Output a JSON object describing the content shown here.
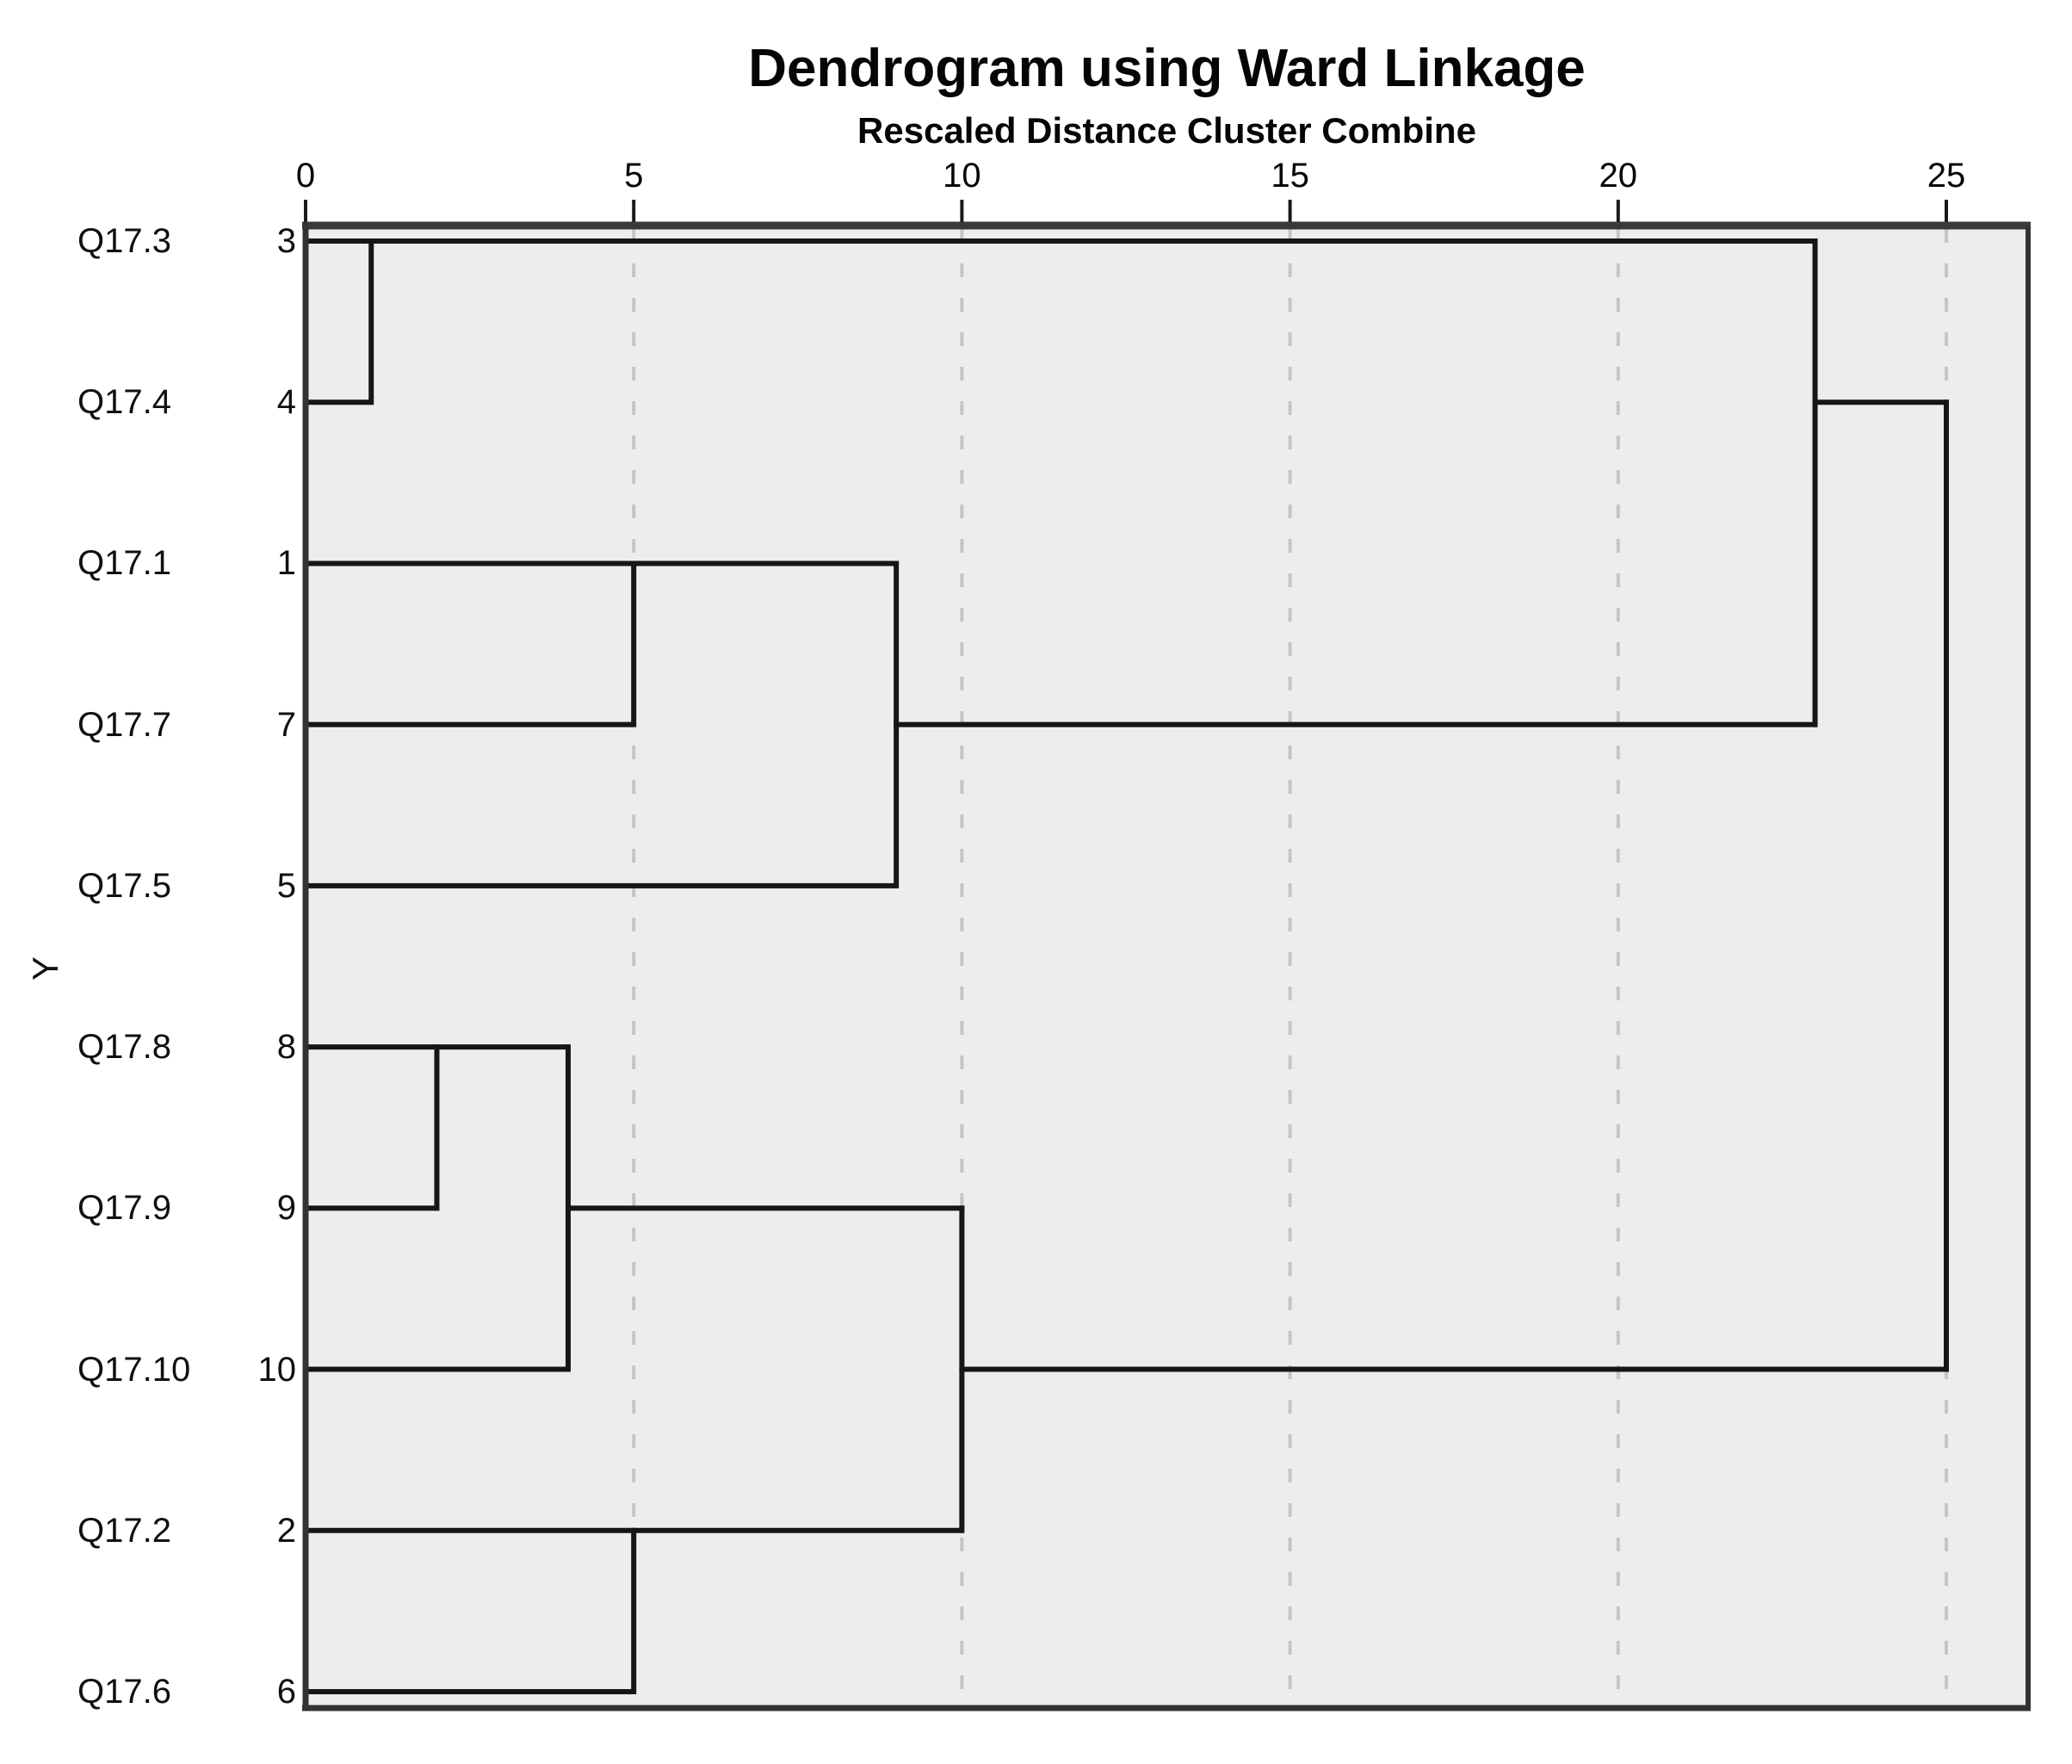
{
  "chart_data": {
    "type": "dendrogram",
    "title": "Dendrogram using Ward Linkage",
    "subtitle": "Rescaled Distance Cluster Combine",
    "orientation": "horizontal",
    "y_axis_label": "Y",
    "x_axis": {
      "ticks": [
        0,
        5,
        10,
        15,
        20,
        25
      ],
      "range": [
        0,
        26.2
      ],
      "gridlines_at": [
        5,
        10,
        15,
        20,
        25
      ],
      "gridline_style": "dashed"
    },
    "leaves": [
      {
        "variable": "Q17.3",
        "case": 3,
        "leaf_line_to": 23
      },
      {
        "variable": "Q17.4",
        "case": 4,
        "leaf_line_to": 1
      },
      {
        "variable": "Q17.1",
        "case": 1,
        "leaf_line_to": 9
      },
      {
        "variable": "Q17.7",
        "case": 7,
        "leaf_line_to": 5
      },
      {
        "variable": "Q17.5",
        "case": 5,
        "leaf_line_to": 9
      },
      {
        "variable": "Q17.8",
        "case": 8,
        "leaf_line_to": 4
      },
      {
        "variable": "Q17.9",
        "case": 9,
        "leaf_line_to": 2
      },
      {
        "variable": "Q17.10",
        "case": 10,
        "leaf_line_to": 4
      },
      {
        "variable": "Q17.2",
        "case": 2,
        "leaf_line_to": 10
      },
      {
        "variable": "Q17.6",
        "case": 6,
        "leaf_line_to": 5
      }
    ],
    "merges": [
      {
        "distance": 1,
        "top_case": 3,
        "bottom_case": 4,
        "cluster": [
          "Q17.3",
          "Q17.4"
        ],
        "continues_at_case": null,
        "continues_to": null
      },
      {
        "distance": 2,
        "top_case": 8,
        "bottom_case": 9,
        "cluster": [
          "Q17.8",
          "Q17.9"
        ],
        "continues_at_case": null,
        "continues_to": null
      },
      {
        "distance": 4,
        "top_case": 8,
        "bottom_case": 10,
        "cluster": [
          "Q17.8",
          "Q17.9",
          "Q17.10"
        ],
        "continues_at_case": 9,
        "continues_to": 10
      },
      {
        "distance": 5,
        "top_case": 1,
        "bottom_case": 7,
        "cluster": [
          "Q17.1",
          "Q17.7"
        ],
        "continues_at_case": null,
        "continues_to": null
      },
      {
        "distance": 5,
        "top_case": 2,
        "bottom_case": 6,
        "cluster": [
          "Q17.2",
          "Q17.6"
        ],
        "continues_at_case": null,
        "continues_to": null
      },
      {
        "distance": 9,
        "top_case": 1,
        "bottom_case": 5,
        "cluster": [
          "Q17.1",
          "Q17.7",
          "Q17.5"
        ],
        "continues_at_case": 7,
        "continues_to": 23
      },
      {
        "distance": 10,
        "top_case": 9,
        "bottom_case": 2,
        "cluster": [
          "Q17.8",
          "Q17.9",
          "Q17.10",
          "Q17.2",
          "Q17.6"
        ],
        "continues_at_case": 10,
        "continues_to": 25
      },
      {
        "distance": 23,
        "top_case": 3,
        "bottom_case": 7,
        "cluster": [
          "Q17.3",
          "Q17.4",
          "Q17.1",
          "Q17.7",
          "Q17.5"
        ],
        "continues_at_case": 4,
        "continues_to": 25
      },
      {
        "distance": 25,
        "top_case": 4,
        "bottom_case": 10,
        "cluster": [
          "all"
        ],
        "continues_at_case": null,
        "continues_to": null
      }
    ],
    "colors": {
      "plot_background": "#ededed",
      "line": "#161616",
      "border": "#333333",
      "gridline": "#c5c5c5",
      "text": "#050505"
    }
  }
}
